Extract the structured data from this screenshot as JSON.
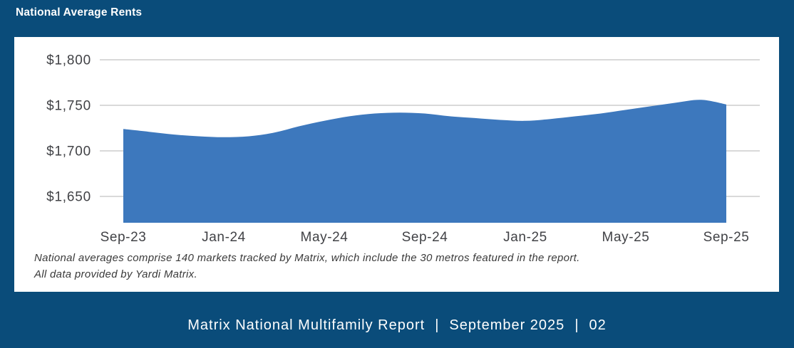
{
  "header": {
    "title": "National Average Rents"
  },
  "chart_data": {
    "type": "area",
    "title": "National Average Rents",
    "x": [
      "Sep-23",
      "Oct-23",
      "Nov-23",
      "Dec-23",
      "Jan-24",
      "Feb-24",
      "Mar-24",
      "Apr-24",
      "May-24",
      "Jun-24",
      "Jul-24",
      "Aug-24",
      "Sep-24",
      "Oct-24",
      "Nov-24",
      "Dec-24",
      "Jan-25",
      "Feb-25",
      "Mar-25",
      "Apr-25",
      "May-25",
      "Jun-25",
      "Jul-25",
      "Aug-25",
      "Sep-25"
    ],
    "values": [
      1724,
      1721,
      1718,
      1716,
      1715,
      1716,
      1720,
      1727,
      1733,
      1738,
      1741,
      1742,
      1741,
      1738,
      1736,
      1734,
      1733,
      1735,
      1738,
      1741,
      1745,
      1749,
      1753,
      1756,
      1751
    ],
    "x_tick_labels": [
      "Sep-23",
      "Jan-24",
      "May-24",
      "Sep-24",
      "Jan-25",
      "May-25",
      "Sep-25"
    ],
    "y_ticks": [
      1800,
      1750,
      1700,
      1650
    ],
    "y_tick_labels": [
      "$1,800",
      "$1,750",
      "$1,700",
      "$1,650"
    ],
    "ylim": [
      1621,
      1825
    ],
    "grid": "horizontal-only",
    "legend": "none",
    "ylabel": "",
    "xlabel": ""
  },
  "footnote": {
    "line1": "National averages comprise 140 markets tracked by Matrix, which include the 30 metros featured in the report.",
    "line2": "All data provided by Yardi Matrix."
  },
  "footer": {
    "report": "Matrix National Multifamily Report",
    "separator": "|",
    "date": "September 2025",
    "page": "02"
  },
  "colors": {
    "background": "#0a4c7a",
    "card": "#ffffff",
    "area_fill": "#3d78bd",
    "gridline": "#d9d9d9",
    "axis_text": "#414246",
    "title_text": "#ffffff",
    "footer_text": "#ffffff"
  }
}
